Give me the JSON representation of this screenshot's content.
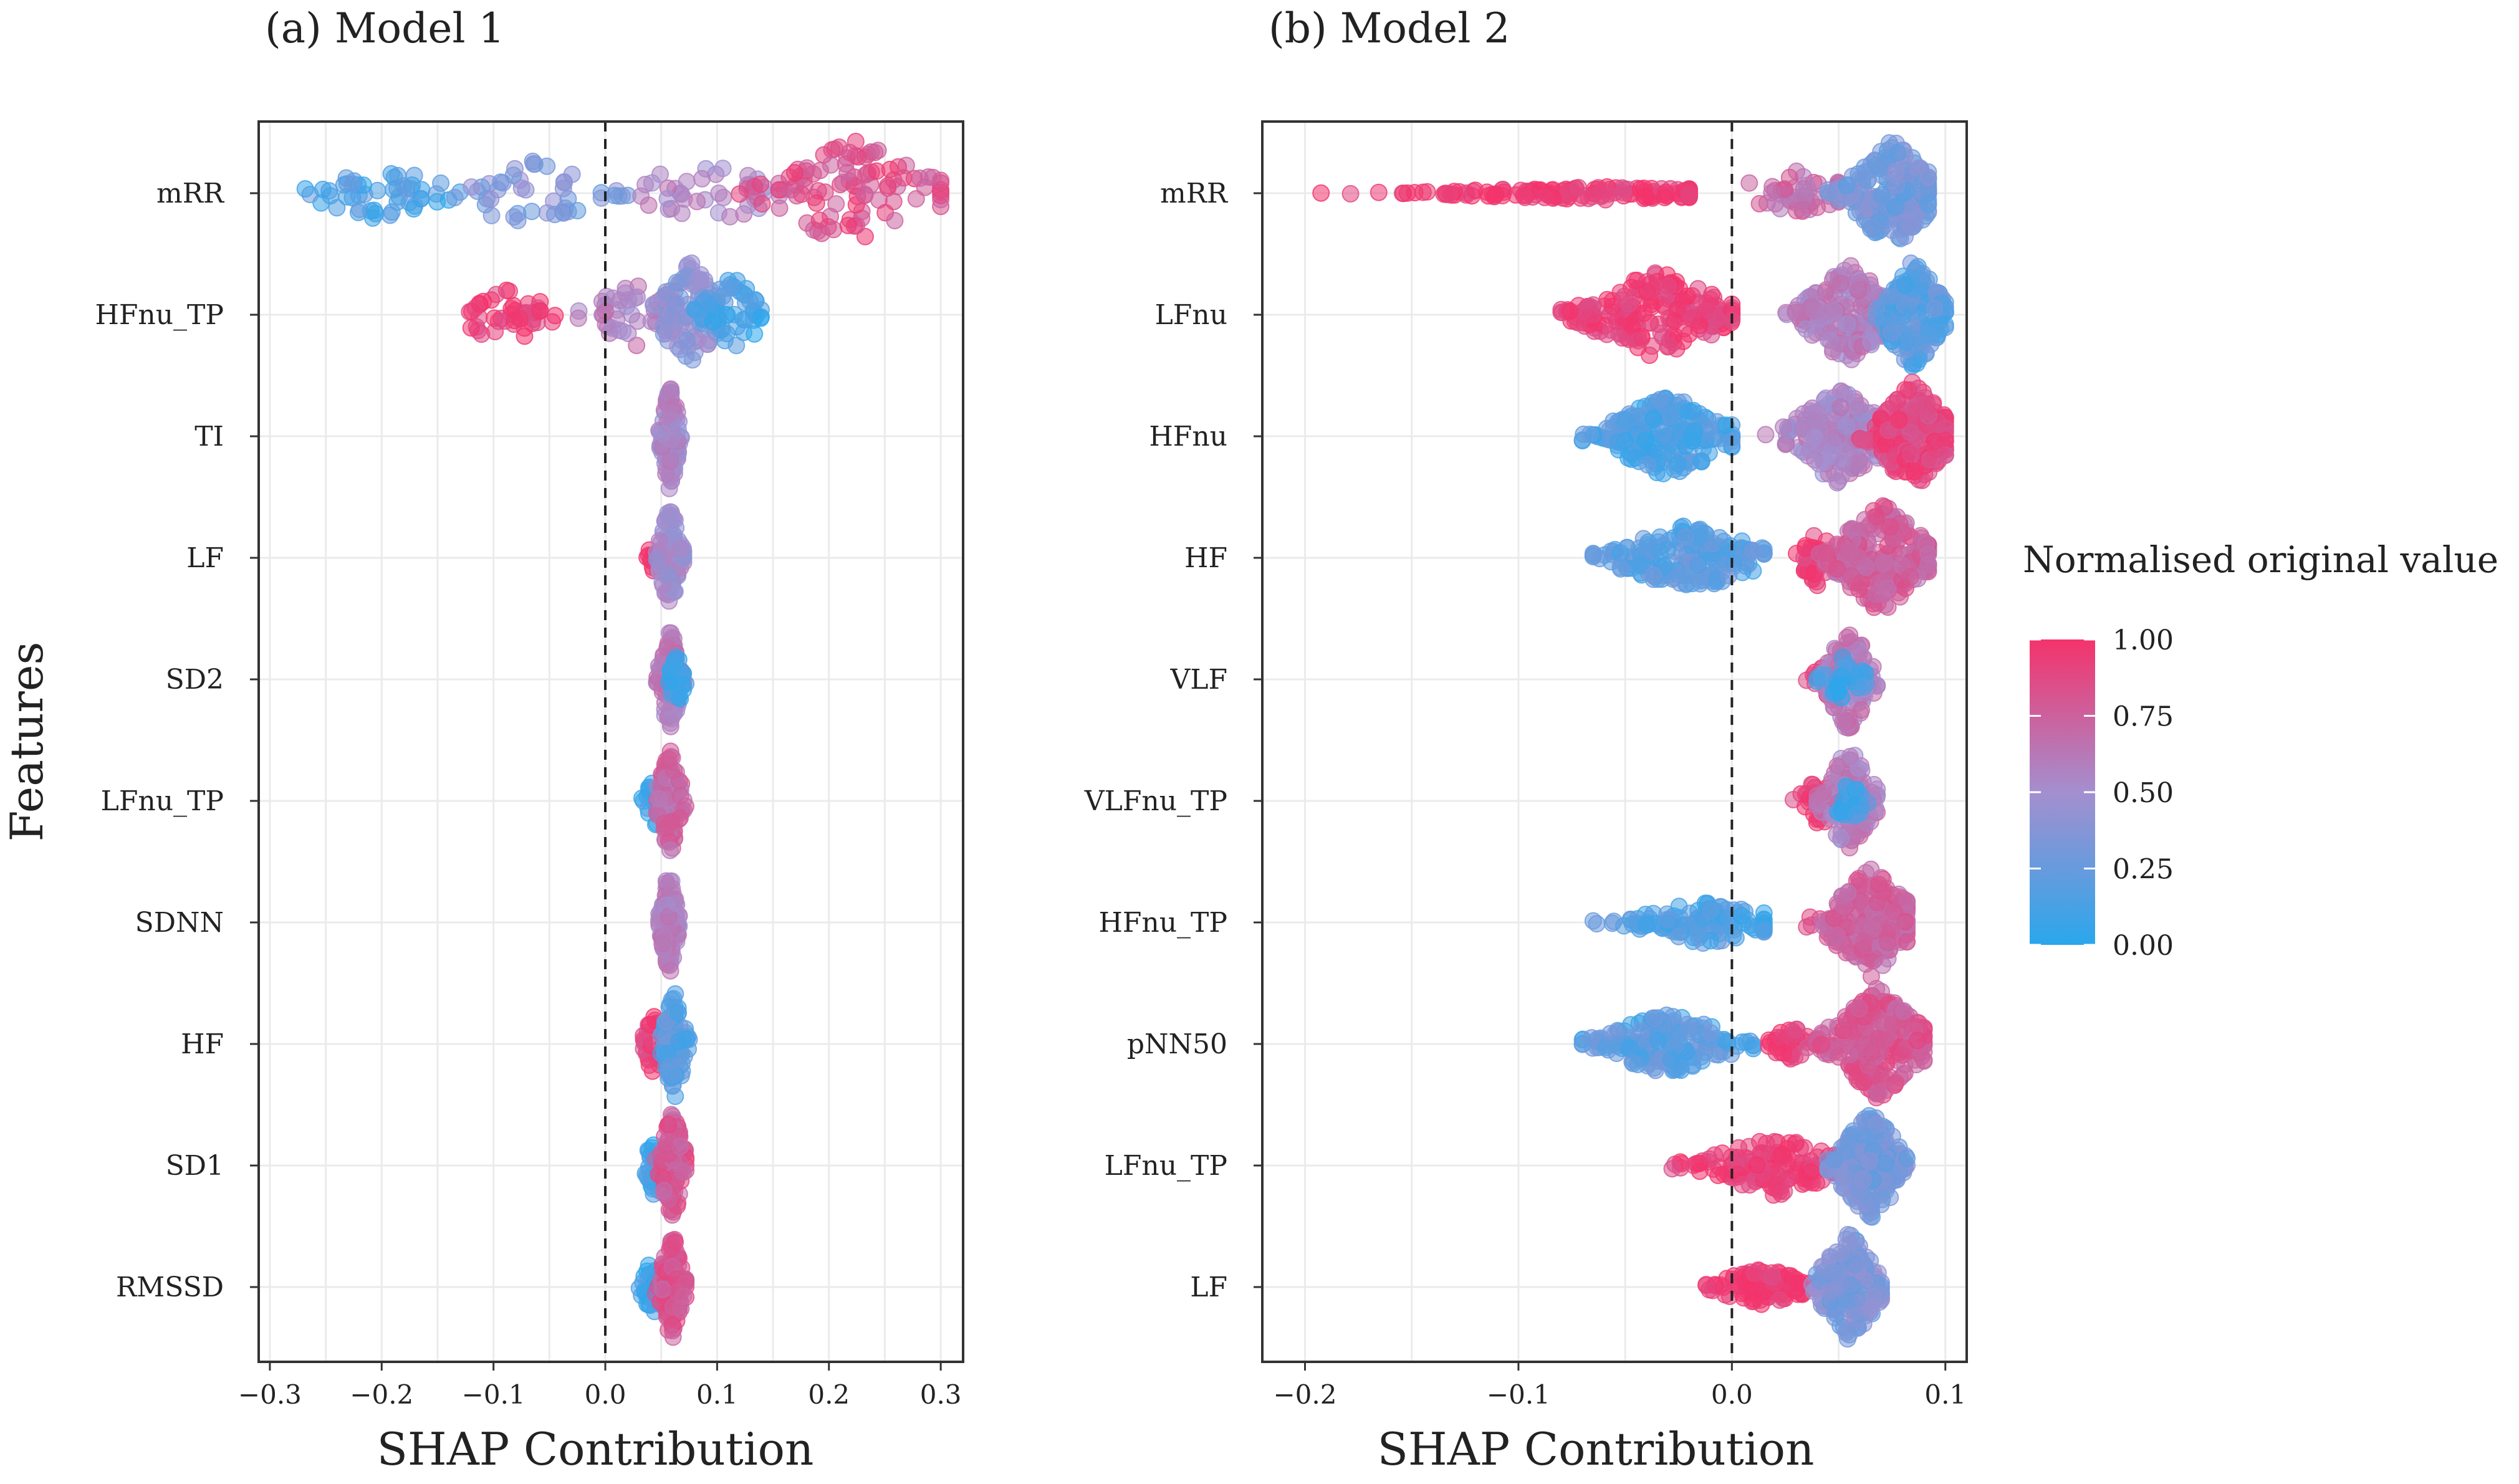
{
  "colors": {
    "low": "#2aa7ec",
    "mid": "#a48fcf",
    "high": "#f4336b"
  },
  "chart_data": [
    {
      "type": "scatter",
      "subtype": "beeswarm",
      "title": "(a) Model 1",
      "xlabel": "SHAP Contribution",
      "ylabel": "Features",
      "xlim": [
        -0.31,
        0.32
      ],
      "xticks": [
        -0.3,
        -0.2,
        -0.1,
        0.0,
        0.1,
        0.2,
        0.3
      ],
      "xtick_labels": [
        "−0.3",
        "−0.2",
        "−0.1",
        "0.0",
        "0.1",
        "0.2",
        "0.3"
      ],
      "reference_line": 0.0,
      "features": [
        {
          "name": "mRR",
          "segments": [
            {
              "min": -0.28,
              "max": -0.12,
              "center": -0.2,
              "color_value": 0.15,
              "spread": 0.5,
              "n": 50
            },
            {
              "min": -0.15,
              "max": 0.02,
              "center": -0.07,
              "color_value": 0.35,
              "spread": 0.6,
              "n": 45
            },
            {
              "min": 0.0,
              "max": 0.16,
              "center": 0.09,
              "color_value": 0.55,
              "spread": 0.6,
              "n": 40
            },
            {
              "min": 0.12,
              "max": 0.3,
              "center": 0.22,
              "color_value": 0.85,
              "spread": 1.0,
              "n": 100
            }
          ]
        },
        {
          "name": "HFnu_TP",
          "segments": [
            {
              "min": -0.14,
              "max": -0.04,
              "center": -0.09,
              "color_value": 0.95,
              "spread": 0.55,
              "n": 45
            },
            {
              "min": -0.05,
              "max": 0.06,
              "center": 0.03,
              "color_value": 0.6,
              "spread": 0.6,
              "n": 45
            },
            {
              "min": 0.03,
              "max": 0.1,
              "center": 0.075,
              "color_value": 0.4,
              "spread": 1.0,
              "n": 90
            },
            {
              "min": 0.08,
              "max": 0.15,
              "center": 0.115,
              "color_value": 0.1,
              "spread": 0.7,
              "n": 50
            }
          ]
        },
        {
          "name": "TI",
          "segments": [
            {
              "min": 0.048,
              "max": 0.068,
              "center": 0.058,
              "color_value": 0.55,
              "spread": 1.0,
              "n": 120
            }
          ]
        },
        {
          "name": "LF",
          "segments": [
            {
              "min": 0.032,
              "max": 0.05,
              "center": 0.045,
              "color_value": 0.95,
              "spread": 0.3,
              "n": 15
            },
            {
              "min": 0.046,
              "max": 0.07,
              "center": 0.058,
              "color_value": 0.5,
              "spread": 1.0,
              "n": 100
            }
          ]
        },
        {
          "name": "SD2",
          "segments": [
            {
              "min": 0.046,
              "max": 0.07,
              "center": 0.058,
              "color_value": 0.6,
              "spread": 1.0,
              "n": 100
            },
            {
              "min": 0.055,
              "max": 0.072,
              "center": 0.064,
              "color_value": 0.08,
              "spread": 0.5,
              "n": 25
            }
          ]
        },
        {
          "name": "LFnu_TP",
          "segments": [
            {
              "min": 0.032,
              "max": 0.052,
              "center": 0.045,
              "color_value": 0.08,
              "spread": 0.5,
              "n": 25
            },
            {
              "min": 0.046,
              "max": 0.072,
              "center": 0.058,
              "color_value": 0.7,
              "spread": 1.0,
              "n": 100
            }
          ]
        },
        {
          "name": "SDNN",
          "segments": [
            {
              "min": 0.048,
              "max": 0.066,
              "center": 0.057,
              "color_value": 0.6,
              "spread": 1.0,
              "n": 120
            }
          ]
        },
        {
          "name": "HF",
          "segments": [
            {
              "min": 0.032,
              "max": 0.058,
              "center": 0.045,
              "color_value": 0.95,
              "spread": 0.6,
              "n": 40
            },
            {
              "min": 0.05,
              "max": 0.075,
              "center": 0.062,
              "color_value": 0.2,
              "spread": 1.0,
              "n": 100
            }
          ]
        },
        {
          "name": "SD1",
          "segments": [
            {
              "min": 0.028,
              "max": 0.05,
              "center": 0.045,
              "color_value": 0.08,
              "spread": 0.6,
              "n": 40
            },
            {
              "min": 0.045,
              "max": 0.072,
              "center": 0.06,
              "color_value": 0.8,
              "spread": 1.0,
              "n": 110
            }
          ]
        },
        {
          "name": "RMSSD",
          "segments": [
            {
              "min": 0.02,
              "max": 0.048,
              "center": 0.042,
              "color_value": 0.05,
              "spread": 0.5,
              "n": 40
            },
            {
              "min": 0.045,
              "max": 0.072,
              "center": 0.06,
              "color_value": 0.8,
              "spread": 1.0,
              "n": 110
            }
          ]
        }
      ]
    },
    {
      "type": "scatter",
      "subtype": "beeswarm",
      "title": "(b) Model 2",
      "xlabel": "SHAP Contribution",
      "xlim": [
        -0.22,
        0.11
      ],
      "xticks": [
        -0.2,
        -0.1,
        0.0,
        0.1
      ],
      "xtick_labels": [
        "−0.2",
        "−0.1",
        "0.0",
        "0.1"
      ],
      "reference_line": 0.0,
      "features": [
        {
          "name": "mRR",
          "segments": [
            {
              "min": -0.205,
              "max": -0.02,
              "center": -0.06,
              "color_value": 0.97,
              "spread": 0.12,
              "n": 160
            },
            {
              "min": -0.02,
              "max": 0.05,
              "center": 0.03,
              "color_value": 0.7,
              "spread": 0.4,
              "n": 50
            },
            {
              "min": 0.045,
              "max": 0.092,
              "center": 0.075,
              "color_value": 0.3,
              "spread": 1.0,
              "n": 190
            }
          ]
        },
        {
          "name": "LFnu",
          "segments": [
            {
              "min": -0.08,
              "max": 0.0,
              "center": -0.035,
              "color_value": 0.95,
              "spread": 0.8,
              "n": 200
            },
            {
              "min": 0.02,
              "max": 0.07,
              "center": 0.055,
              "color_value": 0.6,
              "spread": 0.9,
              "n": 180
            },
            {
              "min": 0.065,
              "max": 0.1,
              "center": 0.085,
              "color_value": 0.2,
              "spread": 1.0,
              "n": 180
            }
          ]
        },
        {
          "name": "HFnu",
          "segments": [
            {
              "min": -0.07,
              "max": 0.0,
              "center": -0.03,
              "color_value": 0.15,
              "spread": 0.75,
              "n": 200
            },
            {
              "min": 0.015,
              "max": 0.07,
              "center": 0.05,
              "color_value": 0.55,
              "spread": 0.9,
              "n": 180
            },
            {
              "min": 0.06,
              "max": 0.1,
              "center": 0.085,
              "color_value": 0.9,
              "spread": 1.0,
              "n": 200
            }
          ]
        },
        {
          "name": "HF",
          "segments": [
            {
              "min": -0.065,
              "max": 0.015,
              "center": -0.02,
              "color_value": 0.2,
              "spread": 0.65,
              "n": 180
            },
            {
              "min": 0.03,
              "max": 0.05,
              "center": 0.04,
              "color_value": 0.97,
              "spread": 0.5,
              "n": 40
            },
            {
              "min": 0.04,
              "max": 0.092,
              "center": 0.07,
              "color_value": 0.75,
              "spread": 1.0,
              "n": 240
            }
          ]
        },
        {
          "name": "VLF",
          "segments": [
            {
              "min": 0.035,
              "max": 0.055,
              "center": 0.045,
              "color_value": 0.95,
              "spread": 0.3,
              "n": 25
            },
            {
              "min": 0.042,
              "max": 0.068,
              "center": 0.055,
              "color_value": 0.6,
              "spread": 1.0,
              "n": 120
            },
            {
              "min": 0.04,
              "max": 0.065,
              "center": 0.052,
              "color_value": 0.08,
              "spread": 0.4,
              "n": 30
            }
          ]
        },
        {
          "name": "VLFnu_TP",
          "segments": [
            {
              "min": 0.028,
              "max": 0.05,
              "center": 0.042,
              "color_value": 0.95,
              "spread": 0.5,
              "n": 35
            },
            {
              "min": 0.04,
              "max": 0.068,
              "center": 0.055,
              "color_value": 0.6,
              "spread": 1.0,
              "n": 120
            },
            {
              "min": 0.045,
              "max": 0.065,
              "center": 0.055,
              "color_value": 0.1,
              "spread": 0.4,
              "n": 25
            }
          ]
        },
        {
          "name": "HFnu_TP",
          "segments": [
            {
              "min": -0.065,
              "max": 0.015,
              "center": -0.012,
              "color_value": 0.15,
              "spread": 0.4,
              "n": 120
            },
            {
              "min": 0.035,
              "max": 0.082,
              "center": 0.065,
              "color_value": 0.75,
              "spread": 1.0,
              "n": 200
            }
          ]
        },
        {
          "name": "pNN50",
          "segments": [
            {
              "min": -0.07,
              "max": 0.01,
              "center": -0.03,
              "color_value": 0.2,
              "spread": 0.55,
              "n": 170
            },
            {
              "min": 0.015,
              "max": 0.04,
              "center": 0.028,
              "color_value": 0.97,
              "spread": 0.35,
              "n": 40
            },
            {
              "min": 0.035,
              "max": 0.09,
              "center": 0.068,
              "color_value": 0.8,
              "spread": 1.0,
              "n": 240
            }
          ]
        },
        {
          "name": "LFnu_TP",
          "segments": [
            {
              "min": -0.028,
              "max": 0.05,
              "center": 0.02,
              "color_value": 0.95,
              "spread": 0.55,
              "n": 150
            },
            {
              "min": 0.045,
              "max": 0.082,
              "center": 0.065,
              "color_value": 0.3,
              "spread": 1.0,
              "n": 200
            }
          ]
        },
        {
          "name": "LF",
          "segments": [
            {
              "min": -0.012,
              "max": 0.045,
              "center": 0.015,
              "color_value": 0.97,
              "spread": 0.35,
              "n": 100
            },
            {
              "min": 0.035,
              "max": 0.07,
              "center": 0.055,
              "color_value": 0.35,
              "spread": 1.0,
              "n": 180
            }
          ]
        }
      ]
    }
  ],
  "legend": {
    "title": "Normalised original value",
    "ticks": [
      {
        "value": 1.0,
        "label": "1.00"
      },
      {
        "value": 0.75,
        "label": "0.75"
      },
      {
        "value": 0.5,
        "label": "0.50"
      },
      {
        "value": 0.25,
        "label": "0.25"
      },
      {
        "value": 0.0,
        "label": "0.00"
      }
    ]
  }
}
